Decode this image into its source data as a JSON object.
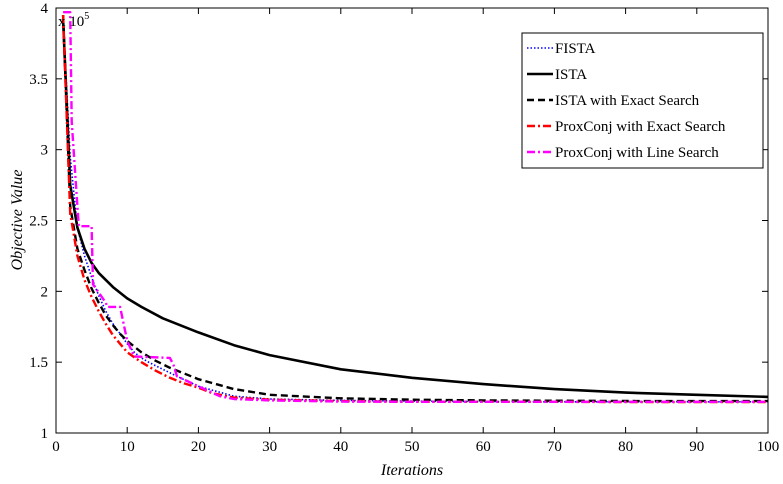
{
  "chart_data": {
    "type": "line",
    "xlabel": "Iterations",
    "ylabel": "Objective Value",
    "y_multiplier": {
      "base": "x 10",
      "exponent": "5"
    },
    "xlim": [
      0,
      100
    ],
    "ylim": [
      1,
      4
    ],
    "xticks": [
      0,
      10,
      20,
      30,
      40,
      50,
      60,
      70,
      80,
      90,
      100
    ],
    "yticks": [
      1,
      1.5,
      2,
      2.5,
      3,
      3.5,
      4
    ],
    "ytick_labels": [
      "1",
      "1.5",
      "2",
      "2.5",
      "3",
      "3.5",
      "4"
    ],
    "grid": false,
    "legend_position": "top-right",
    "series": [
      {
        "name": "FISTA",
        "color": "#0000ff",
        "style": "dotted",
        "x": [
          1,
          2,
          3,
          4,
          5,
          6,
          7,
          8,
          9,
          10,
          11,
          12,
          13,
          15,
          17,
          20,
          25,
          30,
          40,
          50,
          60,
          70,
          80,
          90,
          100
        ],
        "y": [
          3.92,
          2.95,
          2.45,
          2.25,
          2.1,
          1.97,
          1.86,
          1.77,
          1.7,
          1.63,
          1.57,
          1.53,
          1.5,
          1.45,
          1.4,
          1.33,
          1.26,
          1.24,
          1.23,
          1.225,
          1.222,
          1.22,
          1.22,
          1.22,
          1.22
        ]
      },
      {
        "name": "ISTA",
        "color": "#000000",
        "style": "solid",
        "x": [
          1,
          2,
          3,
          4,
          5,
          6,
          8,
          10,
          12,
          15,
          20,
          25,
          30,
          40,
          50,
          60,
          70,
          80,
          90,
          100
        ],
        "y": [
          3.92,
          2.75,
          2.45,
          2.3,
          2.2,
          2.13,
          2.03,
          1.95,
          1.89,
          1.81,
          1.71,
          1.62,
          1.55,
          1.45,
          1.39,
          1.345,
          1.31,
          1.285,
          1.27,
          1.255
        ]
      },
      {
        "name": "ISTA with Exact Search",
        "color": "#000000",
        "style": "dashed",
        "x": [
          1,
          2,
          3,
          4,
          5,
          6,
          7,
          8,
          9,
          10,
          12,
          14,
          16,
          18,
          20,
          25,
          30,
          40,
          50,
          60,
          70,
          80,
          90,
          100
        ],
        "y": [
          3.95,
          2.6,
          2.3,
          2.15,
          2.02,
          1.92,
          1.83,
          1.76,
          1.7,
          1.65,
          1.57,
          1.51,
          1.46,
          1.42,
          1.38,
          1.31,
          1.27,
          1.245,
          1.235,
          1.23,
          1.228,
          1.226,
          1.225,
          1.225
        ]
      },
      {
        "name": "ProxConj with Exact Search",
        "color": "#ff0000",
        "style": "dash-dot",
        "x": [
          1,
          2,
          3,
          4,
          5,
          6,
          7,
          8,
          9,
          10,
          12,
          14,
          16,
          18,
          20,
          22,
          25,
          30,
          40,
          50,
          60,
          70,
          80,
          90,
          100
        ],
        "y": [
          3.95,
          2.55,
          2.25,
          2.08,
          1.96,
          1.86,
          1.77,
          1.69,
          1.63,
          1.57,
          1.5,
          1.44,
          1.39,
          1.35,
          1.32,
          1.28,
          1.25,
          1.235,
          1.225,
          1.22,
          1.22,
          1.22,
          1.218,
          1.218,
          1.218
        ]
      },
      {
        "name": "ProxConj with Line Search",
        "color": "#ff00ff",
        "style": "dash-dot",
        "x": [
          1,
          2,
          2.2,
          3,
          3.2,
          5,
          5.2,
          7,
          7.2,
          9,
          10,
          11,
          16,
          16.5,
          17,
          20,
          23,
          25,
          30,
          40,
          50,
          60,
          70,
          80,
          90,
          100
        ],
        "y": [
          3.97,
          3.97,
          3.2,
          2.6,
          2.46,
          2.46,
          2.05,
          1.92,
          1.89,
          1.89,
          1.65,
          1.54,
          1.53,
          1.48,
          1.4,
          1.33,
          1.26,
          1.24,
          1.23,
          1.222,
          1.22,
          1.22,
          1.22,
          1.22,
          1.22,
          1.22
        ]
      }
    ]
  }
}
